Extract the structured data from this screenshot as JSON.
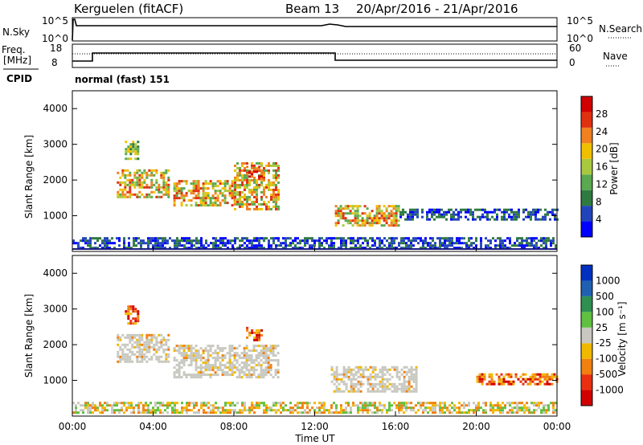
{
  "header": {
    "station": "Kerguelen (fitACF)",
    "beam": "Beam 13",
    "date_range": "20/Apr/2016 - 21/Apr/2016"
  },
  "nsky_panel": {
    "left_label": "N.Sky",
    "right_label": "N.Search",
    "tick_top": "10^5",
    "tick_bottom": "10^0",
    "right_tick_top": "10^5",
    "right_tick_bottom": "10^0"
  },
  "freq_panel": {
    "left_label_1": "Freq.",
    "left_label_2": "[MHz]",
    "right_label": "Nave",
    "left_ticks": [
      "18",
      "8"
    ],
    "right_ticks": [
      "60",
      "0"
    ],
    "cpid_label": "CPID",
    "cpid_value": "normal (fast) 151"
  },
  "chart_data": [
    {
      "type": "heatmap",
      "name": "power",
      "ylabel": "Slant Range [km]",
      "ylim": [
        0,
        4500
      ],
      "yticks": [
        "4000",
        "3000",
        "2000",
        "1000"
      ],
      "colorbar_label": "Power [dB]",
      "colorbar_ticks": [
        "28",
        "24",
        "20",
        "16",
        "12",
        "8",
        "4"
      ],
      "colorbar_colors": [
        "#0000ff",
        "#2244bb",
        "#2e7a40",
        "#5aa850",
        "#a8c840",
        "#f0c000",
        "#f08020",
        "#e03010",
        "#d00000"
      ],
      "regions": [
        {
          "t0": 2.2,
          "t1": 4.8,
          "r0": 1500,
          "r1": 2300,
          "level": "high"
        },
        {
          "t0": 2.6,
          "t1": 3.2,
          "r0": 2600,
          "r1": 3100,
          "level": "mid"
        },
        {
          "t0": 5.0,
          "t1": 8.0,
          "r0": 1300,
          "r1": 2000,
          "level": "high"
        },
        {
          "t0": 8.0,
          "t1": 10.2,
          "r0": 1200,
          "r1": 2500,
          "level": "high"
        },
        {
          "t0": 8.6,
          "t1": 9.4,
          "r0": 2000,
          "r1": 2400,
          "level": "max"
        },
        {
          "t0": 13.0,
          "t1": 16.2,
          "r0": 700,
          "r1": 1300,
          "level": "high"
        },
        {
          "t0": 16.2,
          "t1": 24.0,
          "r0": 900,
          "r1": 1200,
          "level": "low"
        },
        {
          "t0": 0.0,
          "t1": 24.0,
          "r0": 100,
          "r1": 400,
          "level": "low"
        }
      ]
    },
    {
      "type": "heatmap",
      "name": "velocity",
      "ylabel": "Slant Range [km]",
      "ylim": [
        0,
        4500
      ],
      "yticks": [
        "4000",
        "3000",
        "2000",
        "1000"
      ],
      "xlabel": "Time UT",
      "xticks": [
        "00:00",
        "04:00",
        "08:00",
        "12:00",
        "16:00",
        "20:00",
        "00:00"
      ],
      "colorbar_label": "Velocity [m s⁻¹]",
      "colorbar_ticks": [
        "1000",
        "500",
        "100",
        "25",
        "-25",
        "-100",
        "-500",
        "-1000"
      ],
      "colorbar_colors": [
        "#0030c0",
        "#2060b0",
        "#2f8f50",
        "#60c040",
        "#c8c8c0",
        "#f0b800",
        "#f08010",
        "#e83010",
        "#d00000"
      ],
      "regions": [
        {
          "t0": 2.2,
          "t1": 4.8,
          "r0": 1500,
          "r1": 2300,
          "level": "ground"
        },
        {
          "t0": 2.6,
          "t1": 3.2,
          "r0": 2600,
          "r1": 3100,
          "level": "neg"
        },
        {
          "t0": 5.0,
          "t1": 10.2,
          "r0": 1100,
          "r1": 2000,
          "level": "ground"
        },
        {
          "t0": 8.6,
          "t1": 9.4,
          "r0": 2100,
          "r1": 2500,
          "level": "neg"
        },
        {
          "t0": 12.8,
          "t1": 17.0,
          "r0": 700,
          "r1": 1400,
          "level": "ground"
        },
        {
          "t0": 20.0,
          "t1": 24.0,
          "r0": 900,
          "r1": 1200,
          "level": "neg"
        },
        {
          "t0": 0.0,
          "t1": 24.0,
          "r0": 100,
          "r1": 400,
          "level": "mixed"
        }
      ]
    }
  ]
}
